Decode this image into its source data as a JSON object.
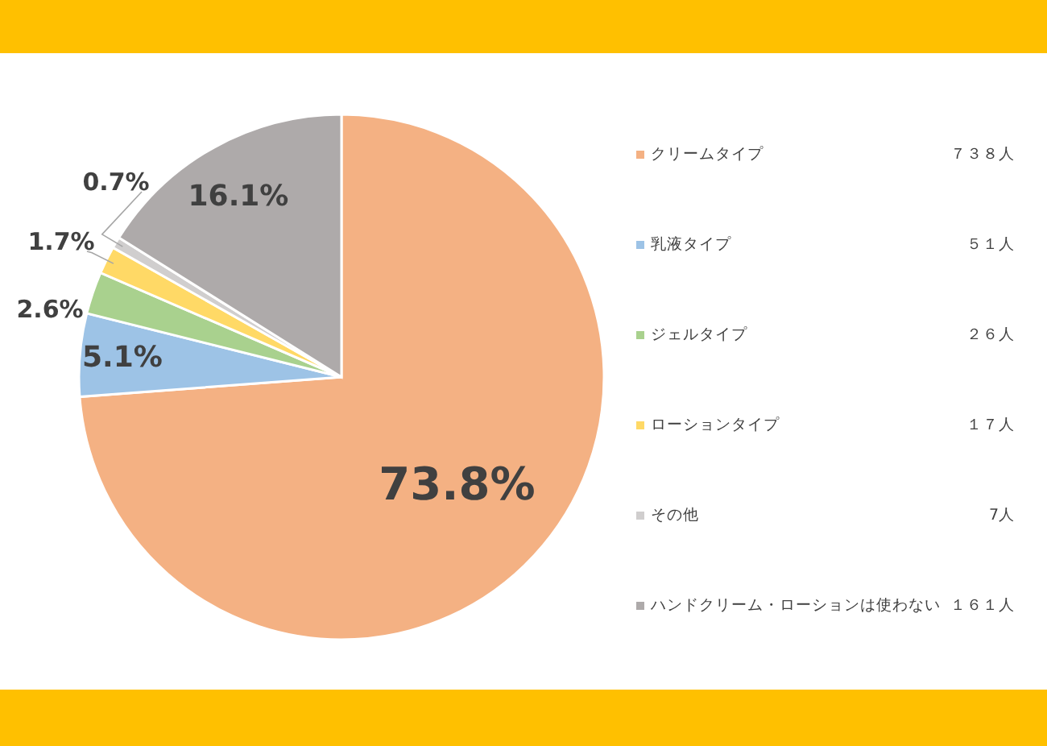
{
  "chart_data": {
    "type": "pie",
    "categories": [
      "クリームタイプ",
      "乳液タイプ",
      "ジェルタイプ",
      "ローションタイプ",
      "その他",
      "ハンドクリーム・ローションは使わない"
    ],
    "values": [
      73.8,
      5.1,
      2.6,
      1.7,
      0.7,
      16.1
    ],
    "value_labels": [
      "73.8%",
      "5.1%",
      "2.6%",
      "1.7%",
      "0.7%",
      "16.1%"
    ],
    "colors": [
      "#f4b183",
      "#9dc3e6",
      "#a9d18e",
      "#ffd966",
      "#d0cece",
      "#aeaaaa"
    ],
    "legend": "right",
    "annotations": [
      "７３８人",
      "５１人",
      "２６人",
      "１７人",
      "7人",
      "１６１人"
    ]
  }
}
